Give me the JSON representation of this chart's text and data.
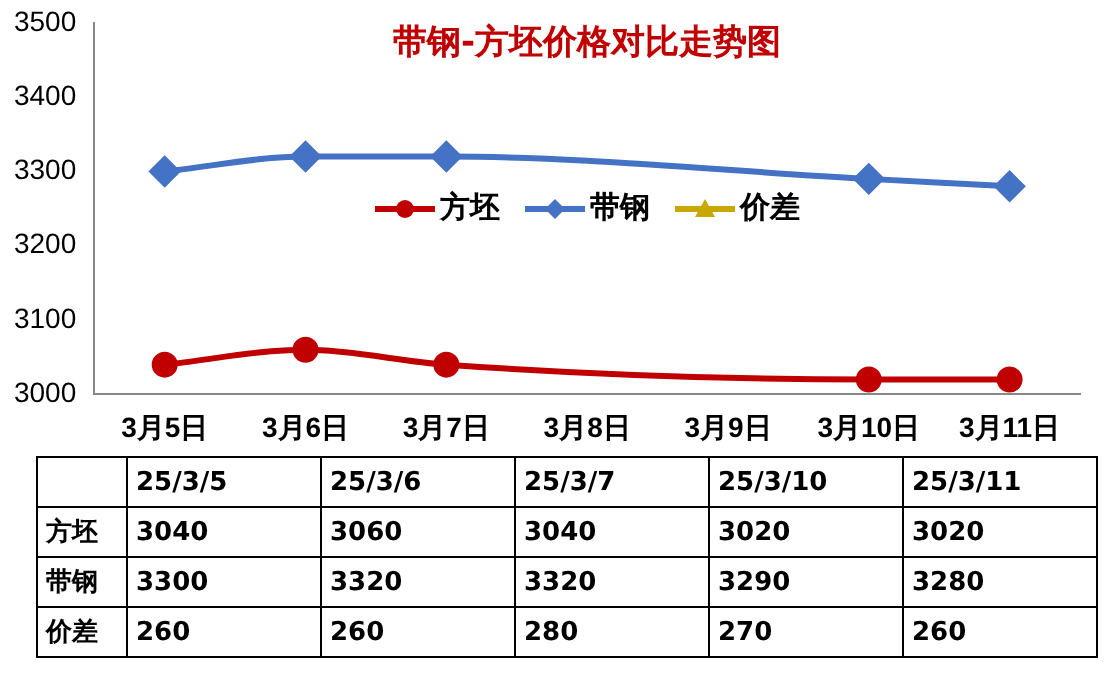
{
  "chart_data": [
    {
      "type": "line",
      "title": "带钢-方坯价格对比走势图",
      "categories": [
        "3月5日",
        "3月6日",
        "3月7日",
        "3月8日",
        "3月9日",
        "3月10日",
        "3月11日"
      ],
      "ylim": [
        3000,
        3500
      ],
      "yticks": [
        3000,
        3100,
        3200,
        3300,
        3400,
        3500
      ],
      "series": [
        {
          "name": "方坯",
          "color": "#c00000",
          "marker": "circle",
          "values": [
            3040,
            3060,
            3040,
            null,
            null,
            3020,
            3020
          ]
        },
        {
          "name": "带钢",
          "color": "#4472c4",
          "marker": "diamond",
          "values": [
            3300,
            3320,
            3320,
            null,
            null,
            3290,
            3280
          ]
        },
        {
          "name": "价差",
          "color": "#c8a800",
          "marker": "triangle",
          "values": [
            null,
            null,
            null,
            null,
            null,
            null,
            null
          ]
        }
      ],
      "grid": false,
      "legend": "center"
    },
    {
      "type": "other",
      "categories": [
        "25/3/5",
        "25/3/6",
        "25/3/7",
        "25/3/10",
        "25/3/11"
      ],
      "series": [
        {
          "name": "方坯",
          "values": [
            3040,
            3060,
            3040,
            3020,
            3020
          ]
        },
        {
          "name": "带钢",
          "values": [
            3300,
            3320,
            3320,
            3290,
            3280
          ]
        },
        {
          "name": "价差",
          "values": [
            260,
            260,
            280,
            270,
            260
          ]
        }
      ],
      "data_labels": true
    }
  ]
}
